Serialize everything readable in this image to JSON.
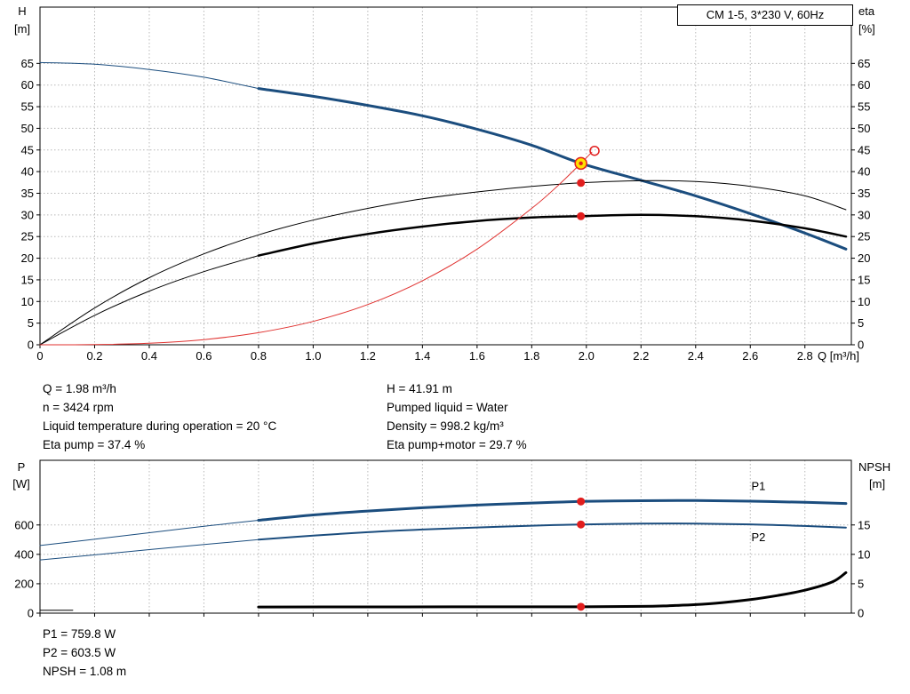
{
  "colors": {
    "blue": "#1b4d7e",
    "red": "#e11d1d",
    "system_red": "#e0312f",
    "yellow": "#ffe000",
    "black": "#000000",
    "grid": "#b8b8b8"
  },
  "chart_data": [
    {
      "type": "line",
      "title": "CM 1-5, 3*230 V, 60Hz",
      "x": {
        "min": 0,
        "max": 2.97,
        "label": "Q [m³/h]",
        "ticks": [
          0,
          0.2,
          0.4,
          0.6,
          0.8,
          1.0,
          1.2,
          1.4,
          1.6,
          1.8,
          2.0,
          2.2,
          2.4,
          2.6,
          2.8
        ],
        "tick_labels": [
          "0",
          "0.2",
          "0.4",
          "0.6",
          "0.8",
          "1.0",
          "1.2",
          "1.4",
          "1.6",
          "1.8",
          "2.0",
          "2.2",
          "2.4",
          "2.6",
          "2.8"
        ]
      },
      "y_left": {
        "min": 0,
        "max": 78,
        "label": [
          "H",
          "[m]"
        ],
        "ticks": [
          0,
          5,
          10,
          15,
          20,
          25,
          30,
          35,
          40,
          45,
          50,
          55,
          60,
          65
        ],
        "tick_labels": [
          "0",
          "5",
          "10",
          "15",
          "20",
          "25",
          "30",
          "35",
          "40",
          "45",
          "50",
          "55",
          "60",
          "65"
        ]
      },
      "y_right": {
        "min": 0,
        "max": 78,
        "label": [
          "eta",
          "[%]"
        ],
        "ticks": [
          0,
          5,
          10,
          15,
          20,
          25,
          30,
          35,
          40,
          45,
          50,
          55,
          60,
          65
        ],
        "tick_labels": [
          "0",
          "5",
          "10",
          "15",
          "20",
          "25",
          "30",
          "35",
          "40",
          "45",
          "50",
          "55",
          "60",
          "65"
        ]
      },
      "series": [
        {
          "name": "head-curve-extension",
          "axis": "left",
          "color": "#1b4d7e",
          "width": 1,
          "points": [
            [
              0,
              65.2
            ],
            [
              0.2,
              64.8
            ],
            [
              0.4,
              63.6
            ],
            [
              0.6,
              61.8
            ],
            [
              0.8,
              59.2
            ]
          ]
        },
        {
          "name": "head-curve",
          "axis": "left",
          "color": "#1b4d7e",
          "width": 3,
          "points": [
            [
              0.8,
              59.2
            ],
            [
              1.0,
              57.4
            ],
            [
              1.2,
              55.3
            ],
            [
              1.4,
              52.9
            ],
            [
              1.6,
              49.8
            ],
            [
              1.8,
              46.1
            ],
            [
              1.98,
              41.91
            ],
            [
              2.2,
              38.0
            ],
            [
              2.4,
              34.4
            ],
            [
              2.6,
              30.3
            ],
            [
              2.8,
              25.8
            ],
            [
              2.95,
              22.1
            ]
          ]
        },
        {
          "name": "eta-pump-curve",
          "axis": "left",
          "color": "#000000",
          "width": 1,
          "points": [
            [
              0,
              0
            ],
            [
              0.2,
              8.5
            ],
            [
              0.4,
              15.5
            ],
            [
              0.6,
              21.0
            ],
            [
              0.8,
              25.4
            ],
            [
              1.0,
              28.8
            ],
            [
              1.2,
              31.5
            ],
            [
              1.4,
              33.7
            ],
            [
              1.6,
              35.3
            ],
            [
              1.8,
              36.6
            ],
            [
              1.98,
              37.4
            ],
            [
              2.2,
              37.9
            ],
            [
              2.4,
              37.7
            ],
            [
              2.6,
              36.6
            ],
            [
              2.8,
              34.4
            ],
            [
              2.95,
              31.2
            ]
          ]
        },
        {
          "name": "eta-pump-motor-extension",
          "axis": "left",
          "color": "#000000",
          "width": 1,
          "points": [
            [
              0,
              0
            ],
            [
              0.2,
              6.8
            ],
            [
              0.4,
              12.4
            ],
            [
              0.6,
              16.9
            ],
            [
              0.8,
              20.6
            ]
          ]
        },
        {
          "name": "eta-pump-motor-curve",
          "axis": "left",
          "color": "#000000",
          "width": 2.5,
          "points": [
            [
              0.8,
              20.6
            ],
            [
              1.0,
              23.4
            ],
            [
              1.2,
              25.6
            ],
            [
              1.4,
              27.3
            ],
            [
              1.6,
              28.6
            ],
            [
              1.8,
              29.4
            ],
            [
              1.98,
              29.7
            ],
            [
              2.2,
              30.0
            ],
            [
              2.4,
              29.7
            ],
            [
              2.6,
              28.7
            ],
            [
              2.8,
              26.9
            ],
            [
              2.95,
              25.0
            ]
          ]
        },
        {
          "name": "system-curve",
          "axis": "left",
          "color": "#e0312f",
          "width": 1,
          "points": [
            [
              0,
              0
            ],
            [
              0.2,
              0.05
            ],
            [
              0.4,
              0.35
            ],
            [
              0.6,
              1.2
            ],
            [
              0.8,
              2.8
            ],
            [
              1.0,
              5.4
            ],
            [
              1.2,
              9.3
            ],
            [
              1.4,
              14.8
            ],
            [
              1.6,
              22.1
            ],
            [
              1.8,
              31.5
            ],
            [
              1.9,
              37.0
            ],
            [
              1.98,
              41.91
            ],
            [
              2.02,
              44.5
            ]
          ]
        }
      ],
      "markers": [
        {
          "type": "dot",
          "x": 1.98,
          "y": 37.4,
          "axis": "left"
        },
        {
          "type": "dot",
          "x": 1.98,
          "y": 29.7,
          "axis": "left"
        },
        {
          "type": "open",
          "x": 2.03,
          "y": 44.8,
          "axis": "left"
        },
        {
          "type": "duty",
          "x": 1.98,
          "y": 41.91,
          "axis": "left"
        }
      ],
      "labels": []
    },
    {
      "type": "line",
      "title": "",
      "x": {
        "min": 0,
        "max": 2.97,
        "label": "",
        "ticks": [
          0,
          0.2,
          0.4,
          0.6,
          0.8,
          1.0,
          1.2,
          1.4,
          1.6,
          1.8,
          2.0,
          2.2,
          2.4,
          2.6,
          2.8
        ],
        "tick_labels": []
      },
      "y_left": {
        "min": 0,
        "max": 1040,
        "label": [
          "P",
          "[W]"
        ],
        "ticks": [
          0,
          200,
          400,
          600
        ],
        "tick_labels": [
          "0",
          "200",
          "400",
          "600"
        ]
      },
      "y_right": {
        "min": 0,
        "max": 26,
        "label": [
          "NPSH",
          "[m]"
        ],
        "ticks": [
          0,
          5,
          10,
          15
        ],
        "tick_labels": [
          "0",
          "5",
          "10",
          "15"
        ]
      },
      "series": [
        {
          "name": "p1-extension",
          "axis": "left",
          "color": "#1b4d7e",
          "width": 1,
          "points": [
            [
              0,
              460
            ],
            [
              0.27,
              518
            ],
            [
              0.53,
              576
            ],
            [
              0.8,
              632
            ]
          ]
        },
        {
          "name": "p1-curve",
          "axis": "left",
          "color": "#1b4d7e",
          "width": 3,
          "points": [
            [
              0.8,
              632
            ],
            [
              1.0,
              668
            ],
            [
              1.2,
              695
            ],
            [
              1.4,
              717
            ],
            [
              1.6,
              735
            ],
            [
              1.8,
              749
            ],
            [
              1.98,
              759.8
            ],
            [
              2.2,
              765
            ],
            [
              2.4,
              766
            ],
            [
              2.6,
              762
            ],
            [
              2.8,
              754
            ],
            [
              2.95,
              746
            ]
          ]
        },
        {
          "name": "p2-extension",
          "axis": "left",
          "color": "#1b4d7e",
          "width": 1,
          "points": [
            [
              0,
              362
            ],
            [
              0.27,
              409
            ],
            [
              0.53,
              455
            ],
            [
              0.8,
              500
            ]
          ]
        },
        {
          "name": "p2-curve",
          "axis": "left",
          "color": "#1b4d7e",
          "width": 2,
          "points": [
            [
              0.8,
              500
            ],
            [
              1.0,
              528
            ],
            [
              1.2,
              551
            ],
            [
              1.4,
              569
            ],
            [
              1.6,
              583
            ],
            [
              1.8,
              595
            ],
            [
              1.98,
              603.5
            ],
            [
              2.2,
              609
            ],
            [
              2.4,
              609
            ],
            [
              2.6,
              604
            ],
            [
              2.8,
              593
            ],
            [
              2.95,
              582
            ]
          ]
        },
        {
          "name": "npsh-extension",
          "axis": "right",
          "color": "#000000",
          "width": 1,
          "points": [
            [
              0,
              0.5
            ],
            [
              0.12,
              0.5
            ]
          ]
        },
        {
          "name": "npsh-curve",
          "axis": "right",
          "color": "#000000",
          "width": 3,
          "points": [
            [
              0.8,
              1.05
            ],
            [
              1.2,
              1.06
            ],
            [
              1.6,
              1.07
            ],
            [
              1.98,
              1.08
            ],
            [
              2.2,
              1.15
            ],
            [
              2.3,
              1.26
            ],
            [
              2.4,
              1.45
            ],
            [
              2.5,
              1.8
            ],
            [
              2.6,
              2.3
            ],
            [
              2.7,
              3.0
            ],
            [
              2.8,
              3.9
            ],
            [
              2.9,
              5.3
            ],
            [
              2.95,
              6.9
            ]
          ]
        }
      ],
      "markers": [
        {
          "type": "dot",
          "x": 1.98,
          "y": 759.8,
          "axis": "left"
        },
        {
          "type": "dot",
          "x": 1.98,
          "y": 603.5,
          "axis": "left"
        },
        {
          "type": "dot",
          "x": 1.98,
          "y": 1.08,
          "axis": "right"
        }
      ],
      "labels": [
        {
          "text": "P1",
          "x": 2.63,
          "y": 838,
          "axis": "left",
          "color": "#1b4d7e"
        },
        {
          "text": "P2",
          "x": 2.63,
          "y": 490,
          "axis": "left",
          "color": "#1b4d7e"
        }
      ]
    }
  ],
  "info_top": {
    "left": [
      "Q = 1.98 m³/h",
      "n = 3424 rpm",
      "Liquid temperature during operation = 20 °C",
      "Eta pump = 37.4 %"
    ],
    "right": [
      "H = 41.91 m",
      "Pumped liquid = Water",
      "Density = 998.2 kg/m³",
      "Eta pump+motor = 29.7 %"
    ]
  },
  "info_bottom": [
    "P1 = 759.8 W",
    "P2 = 603.5 W",
    "NPSH = 1.08 m"
  ]
}
